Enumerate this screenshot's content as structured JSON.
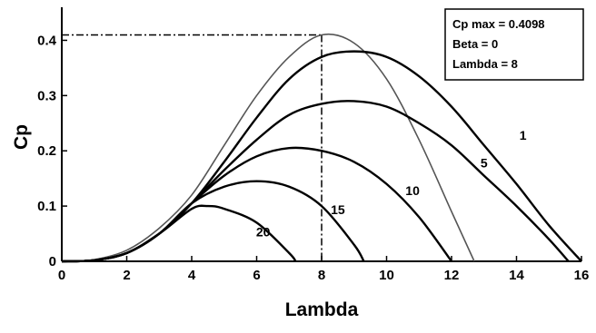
{
  "chart_data": {
    "type": "line",
    "xlabel": "Lambda",
    "ylabel": "Cp",
    "xlim": [
      0,
      16
    ],
    "ylim": [
      0,
      0.45
    ],
    "xticks": [
      "0",
      "2",
      "4",
      "6",
      "8",
      "10",
      "12",
      "14",
      "16"
    ],
    "yticks": [
      "0",
      "0.1",
      "0.2",
      "0.3",
      "0.4"
    ],
    "grid": false,
    "legend_placement": "top-right",
    "annotation": {
      "lines": [
        "Cp max = 0.4098",
        "Beta = 0",
        "Lambda = 8"
      ],
      "cp_max": 0.4098,
      "lambda_opt": 8
    },
    "series": [
      {
        "label": "",
        "x": [
          0,
          1,
          2,
          3,
          4,
          5,
          6,
          7,
          8,
          9,
          10,
          11,
          12,
          12.7
        ],
        "y": [
          0,
          0.003,
          0.02,
          0.06,
          0.12,
          0.21,
          0.3,
          0.37,
          0.4098,
          0.395,
          0.33,
          0.22,
          0.09,
          0
        ]
      },
      {
        "label": "1",
        "x": [
          0,
          1,
          2,
          3,
          4,
          5,
          6,
          7,
          8,
          9,
          10,
          11,
          12,
          13,
          14,
          15,
          16
        ],
        "y": [
          0,
          0.002,
          0.015,
          0.05,
          0.105,
          0.18,
          0.26,
          0.33,
          0.37,
          0.38,
          0.37,
          0.335,
          0.28,
          0.21,
          0.14,
          0.065,
          0
        ]
      },
      {
        "label": "5",
        "x": [
          0,
          1,
          2,
          3,
          4,
          5,
          6,
          7,
          8,
          9,
          10,
          11,
          12,
          13,
          14,
          15,
          15.6
        ],
        "y": [
          0,
          0.002,
          0.015,
          0.05,
          0.105,
          0.165,
          0.22,
          0.265,
          0.285,
          0.29,
          0.28,
          0.25,
          0.21,
          0.155,
          0.1,
          0.04,
          0
        ]
      },
      {
        "label": "10",
        "x": [
          0,
          1,
          2,
          3,
          4,
          5,
          6,
          7,
          8,
          9,
          10,
          11,
          12
        ],
        "y": [
          0,
          0.002,
          0.015,
          0.05,
          0.105,
          0.155,
          0.19,
          0.205,
          0.2,
          0.18,
          0.14,
          0.08,
          0
        ]
      },
      {
        "label": "15",
        "x": [
          0,
          1,
          2,
          3,
          4,
          5,
          6,
          7,
          8,
          9,
          9.3
        ],
        "y": [
          0,
          0.002,
          0.015,
          0.05,
          0.105,
          0.135,
          0.145,
          0.135,
          0.1,
          0.03,
          0
        ]
      },
      {
        "label": "20",
        "x": [
          0,
          1,
          2,
          3,
          4,
          4.5,
          5,
          6,
          7,
          7.2
        ],
        "y": [
          0,
          0.002,
          0.015,
          0.05,
          0.095,
          0.1,
          0.095,
          0.07,
          0.015,
          0
        ]
      }
    ]
  }
}
